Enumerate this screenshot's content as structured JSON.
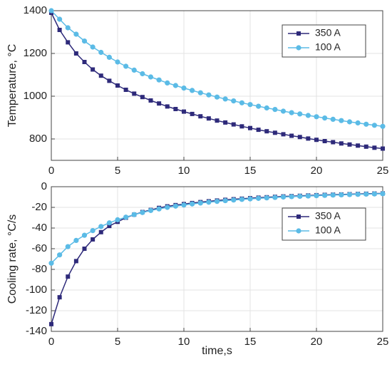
{
  "chart_data": [
    {
      "type": "line",
      "ylabel": "Temperature, °C",
      "x": [
        0,
        0.625,
        1.25,
        1.875,
        2.5,
        3.125,
        3.75,
        4.375,
        5,
        5.625,
        6.25,
        6.875,
        7.5,
        8.125,
        8.75,
        9.375,
        10,
        10.625,
        11.25,
        11.875,
        12.5,
        13.125,
        13.75,
        14.375,
        15,
        15.625,
        16.25,
        16.875,
        17.5,
        18.125,
        18.75,
        19.375,
        20,
        20.625,
        21.25,
        21.875,
        22.5,
        23.125,
        23.75,
        24.375,
        25
      ],
      "series": [
        {
          "name": "350 A",
          "color": "#2e2a7a",
          "marker": "square",
          "values": [
            1390,
            1310,
            1252,
            1200,
            1160,
            1125,
            1096,
            1072,
            1050,
            1030,
            1012,
            996,
            980,
            966,
            952,
            940,
            928,
            917,
            906,
            896,
            886,
            877,
            868,
            859,
            851,
            843,
            836,
            829,
            822,
            815,
            809,
            802,
            796,
            790,
            785,
            779,
            774,
            769,
            764,
            759,
            755
          ]
        },
        {
          "name": "100 A",
          "color": "#5bbbe6",
          "marker": "circle",
          "values": [
            1400,
            1360,
            1320,
            1290,
            1258,
            1230,
            1205,
            1182,
            1160,
            1140,
            1122,
            1105,
            1090,
            1076,
            1062,
            1050,
            1038,
            1027,
            1016,
            1006,
            996,
            987,
            978,
            969,
            961,
            953,
            945,
            938,
            930,
            923,
            917,
            910,
            904,
            898,
            892,
            886,
            880,
            875,
            869,
            864,
            859
          ]
        }
      ],
      "xlim": [
        0,
        25
      ],
      "xticks": [
        0,
        5,
        10,
        15,
        20,
        25
      ],
      "ylim": [
        700,
        1400
      ],
      "yticks": [
        800,
        1000,
        1200,
        1400
      ],
      "grid": true,
      "legend": "upper right"
    },
    {
      "type": "line",
      "xlabel": "time,s",
      "ylabel": "Cooling rate, °C/s",
      "x": [
        0,
        0.625,
        1.25,
        1.875,
        2.5,
        3.125,
        3.75,
        4.375,
        5,
        5.625,
        6.25,
        6.875,
        7.5,
        8.125,
        8.75,
        9.375,
        10,
        10.625,
        11.25,
        11.875,
        12.5,
        13.125,
        13.75,
        14.375,
        15,
        15.625,
        16.25,
        16.875,
        17.5,
        18.125,
        18.75,
        19.375,
        20,
        20.625,
        21.25,
        21.875,
        22.5,
        23.125,
        23.75,
        24.375,
        25
      ],
      "series": [
        {
          "name": "350 A",
          "color": "#2e2a7a",
          "marker": "square",
          "values": [
            -133,
            -107,
            -87,
            -72,
            -60,
            -51,
            -44,
            -38,
            -34,
            -30,
            -27,
            -24.5,
            -22.5,
            -20.5,
            -19,
            -17.8,
            -16.8,
            -15.8,
            -14.9,
            -14.1,
            -13.4,
            -12.7,
            -12.1,
            -11.6,
            -11.1,
            -10.6,
            -10.2,
            -9.8,
            -9.4,
            -9.1,
            -8.8,
            -8.5,
            -8.2,
            -7.9,
            -7.7,
            -7.5,
            -7.2,
            -7,
            -6.8,
            -6.6,
            -6.5
          ]
        },
        {
          "name": "100 A",
          "color": "#5bbbe6",
          "marker": "circle",
          "values": [
            -74,
            -66,
            -58,
            -52,
            -47,
            -42.5,
            -38.5,
            -35,
            -32,
            -29.5,
            -27,
            -25,
            -23,
            -21.5,
            -20,
            -18.8,
            -17.7,
            -16.7,
            -15.8,
            -15,
            -14.2,
            -13.5,
            -12.9,
            -12.3,
            -11.8,
            -11.3,
            -10.8,
            -10.4,
            -10,
            -9.6,
            -9.3,
            -9,
            -8.7,
            -8.4,
            -8.1,
            -7.9,
            -7.6,
            -7.4,
            -7.2,
            -7,
            -6.8
          ]
        }
      ],
      "xlim": [
        0,
        25
      ],
      "xticks": [
        0,
        5,
        10,
        15,
        20,
        25
      ],
      "ylim": [
        -140,
        0
      ],
      "yticks": [
        -140,
        -120,
        -100,
        -80,
        -60,
        -40,
        -20,
        0
      ],
      "grid": true,
      "legend": "right"
    }
  ]
}
